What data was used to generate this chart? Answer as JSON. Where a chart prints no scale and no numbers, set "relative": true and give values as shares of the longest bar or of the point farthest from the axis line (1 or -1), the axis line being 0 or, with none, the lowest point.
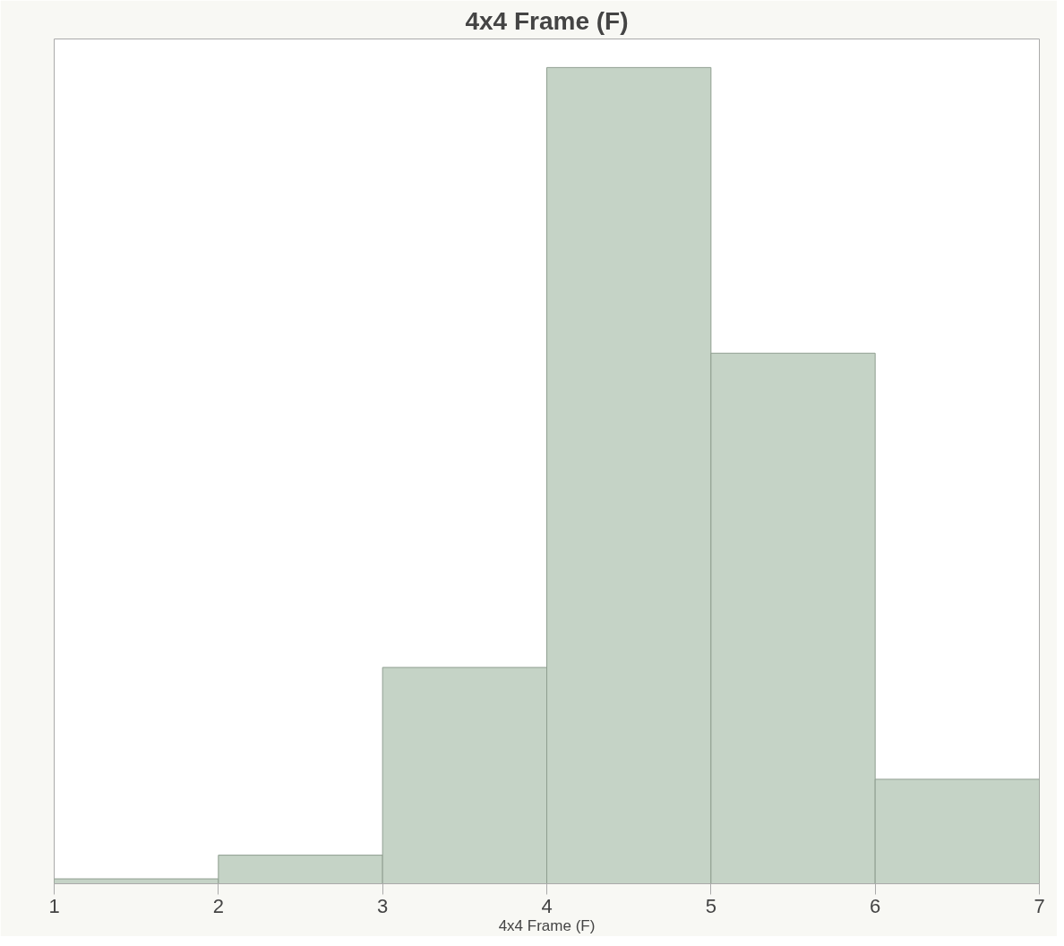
{
  "chart_data": {
    "type": "bar",
    "title": "4x4 Frame (F)",
    "xlabel": "4x4 Frame (F)",
    "relative": true,
    "x": [
      1.5,
      2.5,
      3.5,
      4.5,
      5.5,
      6.5
    ],
    "values": [
      0.006,
      0.035,
      0.265,
      1,
      0.65,
      0.128
    ],
    "color": "#c5d3c6",
    "xlim": [
      1,
      7
    ],
    "xticks": [
      1,
      2,
      3,
      4,
      5,
      6,
      7
    ],
    "grid": false,
    "legend": false
  }
}
